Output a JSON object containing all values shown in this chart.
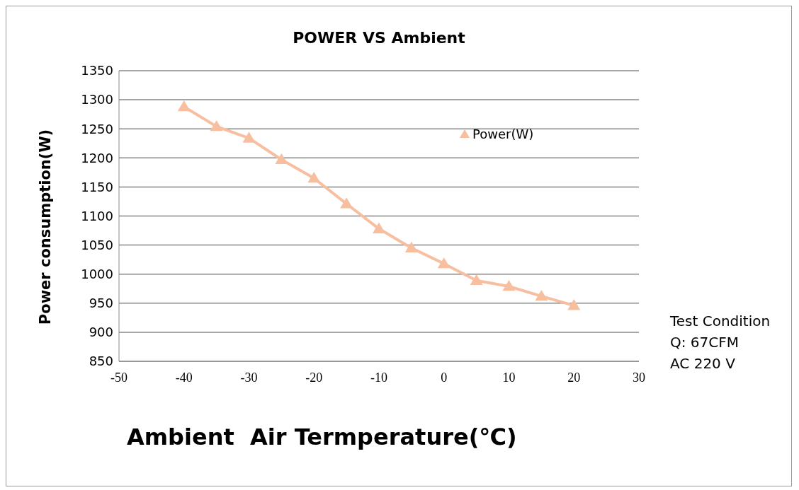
{
  "chart_data": {
    "type": "line",
    "title": "POWER VS Ambient",
    "xlabel": "Ambient  Air Termperature(℃)",
    "ylabel": "Power consumption(W)",
    "x": [
      -40,
      -35,
      -30,
      -25,
      -20,
      -15,
      -10,
      -5,
      0,
      5,
      10,
      15,
      20
    ],
    "series": [
      {
        "name": "Power(W)",
        "color": "#f7bfa0",
        "values": [
          1288,
          1254,
          1234,
          1197,
          1165,
          1121,
          1078,
          1045,
          1018,
          989,
          979,
          962,
          946
        ]
      }
    ],
    "xlim": [
      -50,
      30
    ],
    "xticks": [
      -50,
      -40,
      -30,
      -20,
      -10,
      0,
      10,
      20,
      30
    ],
    "ylim": [
      850,
      1350
    ],
    "yticks": [
      850,
      900,
      950,
      1000,
      1050,
      1100,
      1150,
      1200,
      1250,
      1300,
      1350
    ],
    "grid": "y",
    "legend": "top right",
    "marker": "triangle",
    "line_style": "solid",
    "annotations": [
      "Test Condition",
      "Q: 67CFM",
      "AC 220 V"
    ]
  }
}
